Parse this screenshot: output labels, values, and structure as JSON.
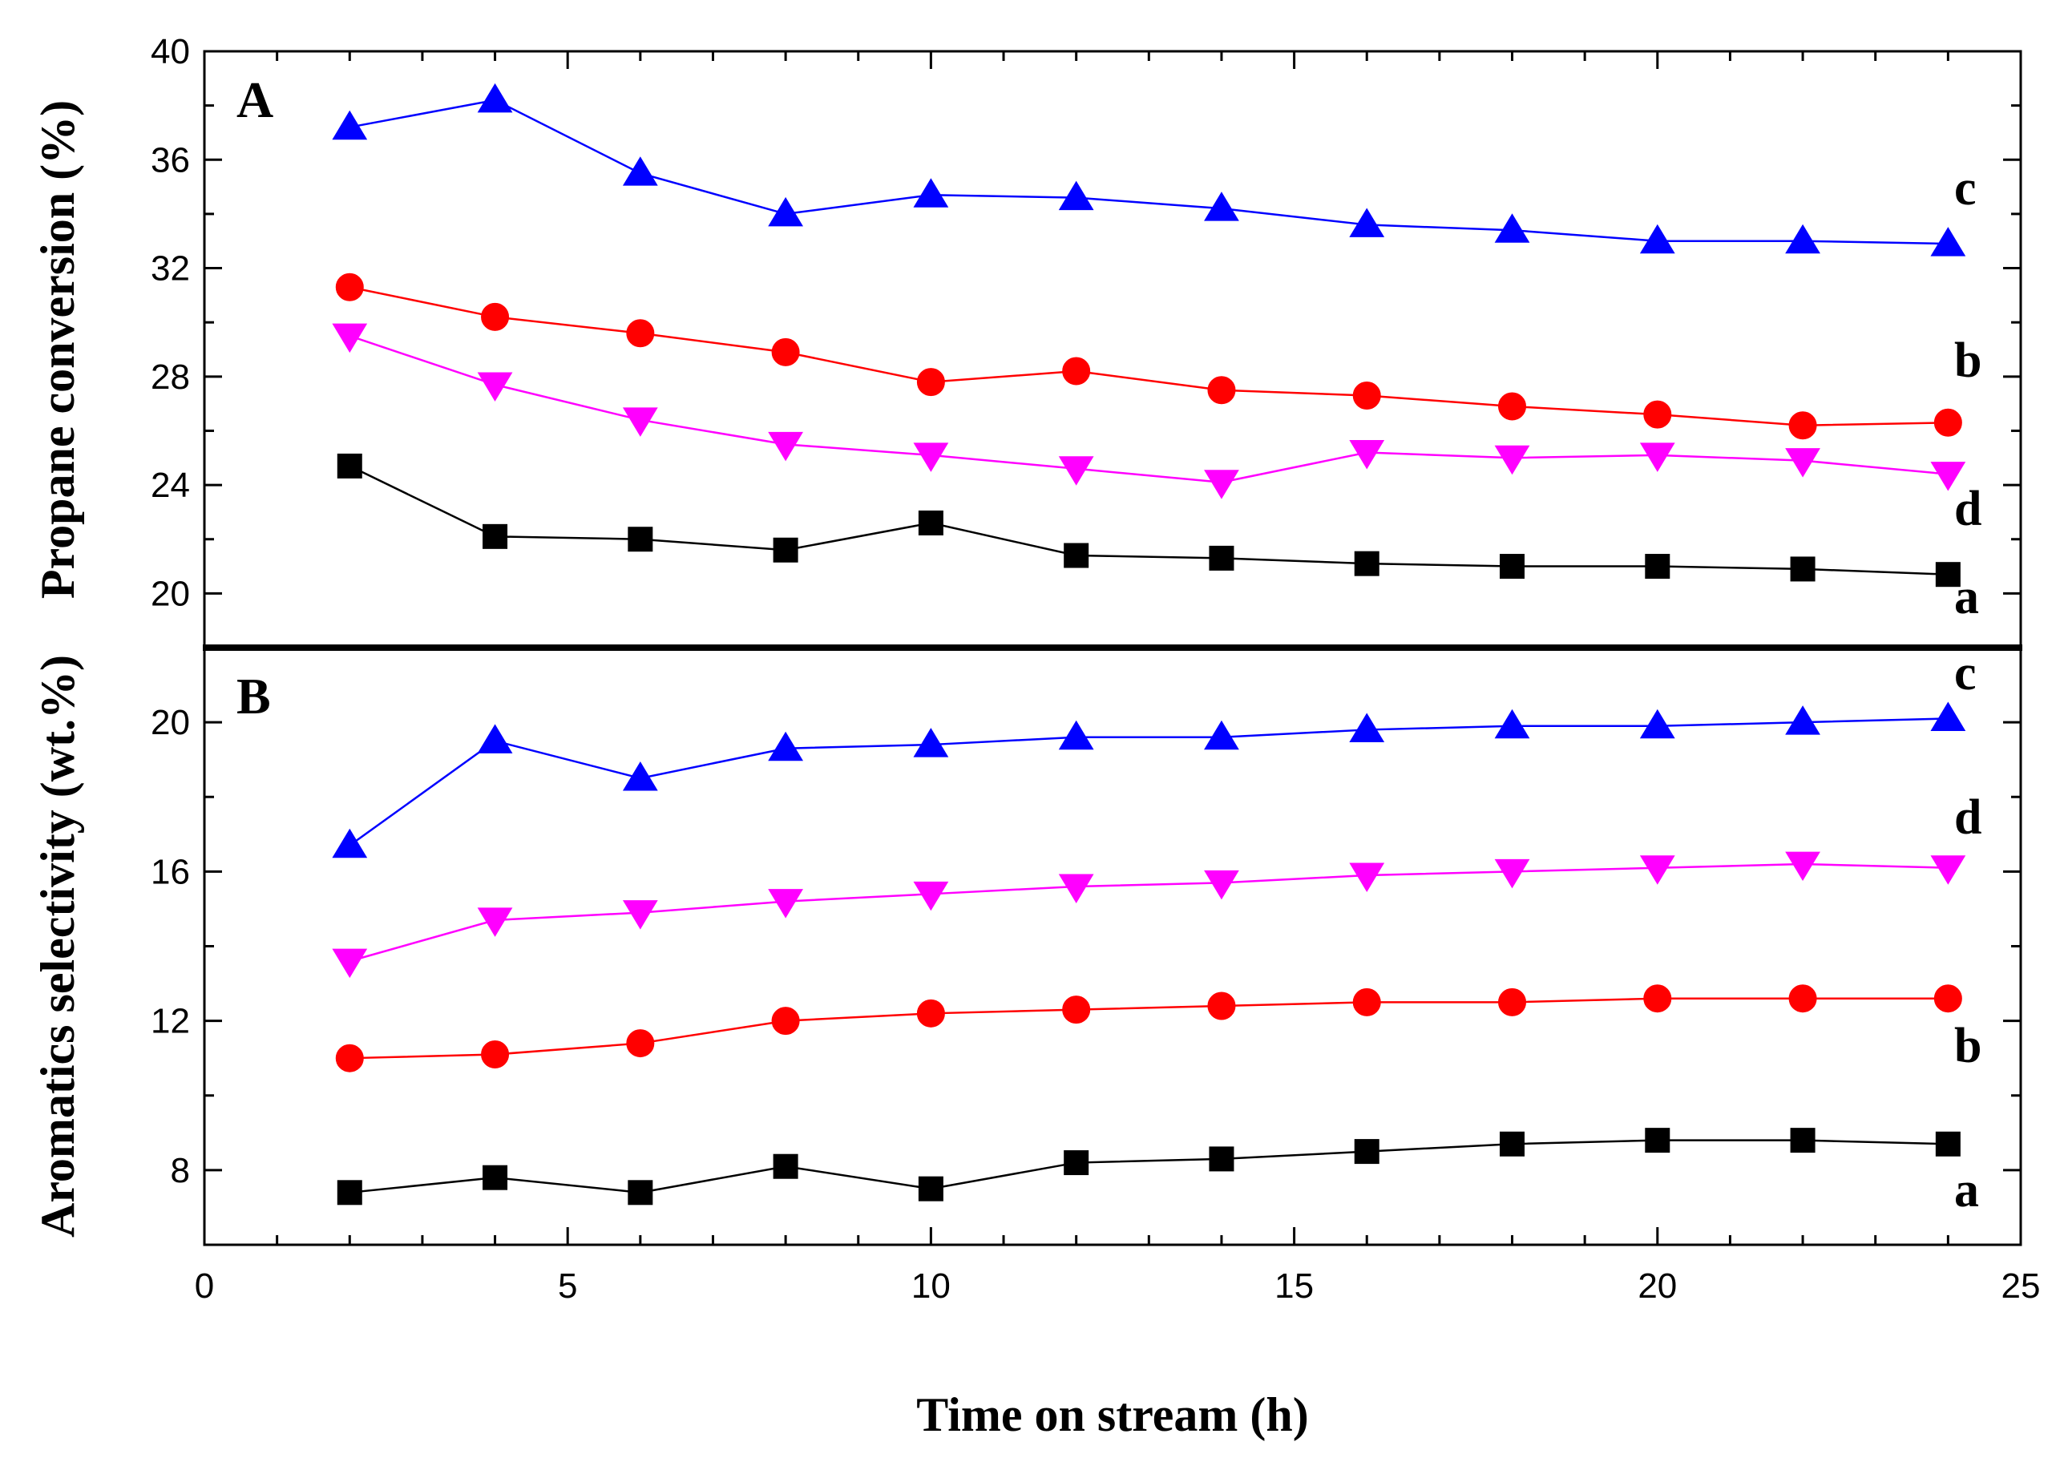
{
  "chart_data": [
    {
      "panel": "A",
      "type": "line",
      "ylabel": "Propane conversion (%)",
      "xlabel": "Time on stream (h)",
      "xlim": [
        0,
        25
      ],
      "ylim": [
        18,
        40
      ],
      "yticks": [
        20,
        24,
        28,
        32,
        36,
        40
      ],
      "x": [
        2,
        4,
        6,
        8,
        10,
        12,
        14,
        16,
        18,
        20,
        22,
        24
      ],
      "series": [
        {
          "name": "a",
          "marker": "square",
          "color": "#000000",
          "values": [
            24.7,
            22.1,
            22.0,
            21.6,
            22.6,
            21.4,
            21.3,
            21.1,
            21.0,
            21.0,
            20.9,
            20.7
          ]
        },
        {
          "name": "b",
          "marker": "circle",
          "color": "#ff0000",
          "values": [
            31.3,
            30.2,
            29.6,
            28.9,
            27.8,
            28.2,
            27.5,
            27.3,
            26.9,
            26.6,
            26.2,
            26.3
          ]
        },
        {
          "name": "c",
          "marker": "triangle-up",
          "color": "#0000ff",
          "values": [
            37.2,
            38.2,
            35.5,
            34.0,
            34.7,
            34.6,
            34.2,
            33.6,
            33.4,
            33.0,
            33.0,
            32.9
          ]
        },
        {
          "name": "d",
          "marker": "triangle-down",
          "color": "#ff00ff",
          "values": [
            29.5,
            27.7,
            26.4,
            25.5,
            25.1,
            24.6,
            24.1,
            25.2,
            25.0,
            25.1,
            24.9,
            24.4
          ]
        }
      ],
      "series_label_order": [
        "c",
        "b",
        "d",
        "a"
      ]
    },
    {
      "panel": "B",
      "type": "line",
      "ylabel": "Aromatics selectivity (wt.%)",
      "xlabel": "Time on stream (h)",
      "xlim": [
        0,
        25
      ],
      "ylim": [
        6,
        22
      ],
      "yticks": [
        8,
        12,
        16,
        20
      ],
      "x": [
        2,
        4,
        6,
        8,
        10,
        12,
        14,
        16,
        18,
        20,
        22,
        24
      ],
      "series": [
        {
          "name": "a",
          "marker": "square",
          "color": "#000000",
          "values": [
            7.4,
            7.8,
            7.4,
            8.1,
            7.5,
            8.2,
            8.3,
            8.5,
            8.7,
            8.8,
            8.8,
            8.7
          ]
        },
        {
          "name": "b",
          "marker": "circle",
          "color": "#ff0000",
          "values": [
            11.0,
            11.1,
            11.4,
            12.0,
            12.2,
            12.3,
            12.4,
            12.5,
            12.5,
            12.6,
            12.6,
            12.6
          ]
        },
        {
          "name": "c",
          "marker": "triangle-up",
          "color": "#0000ff",
          "values": [
            16.7,
            19.5,
            18.5,
            19.3,
            19.4,
            19.6,
            19.6,
            19.8,
            19.9,
            19.9,
            20.0,
            20.1
          ]
        },
        {
          "name": "d",
          "marker": "triangle-down",
          "color": "#ff00ff",
          "values": [
            13.6,
            14.7,
            14.9,
            15.2,
            15.4,
            15.6,
            15.7,
            15.9,
            16.0,
            16.1,
            16.2,
            16.1
          ]
        }
      ],
      "series_label_order": [
        "c",
        "d",
        "b",
        "a"
      ]
    }
  ],
  "x_axis": {
    "title": "Time on stream (h)",
    "ticks": [
      0,
      5,
      10,
      15,
      20,
      25
    ]
  }
}
